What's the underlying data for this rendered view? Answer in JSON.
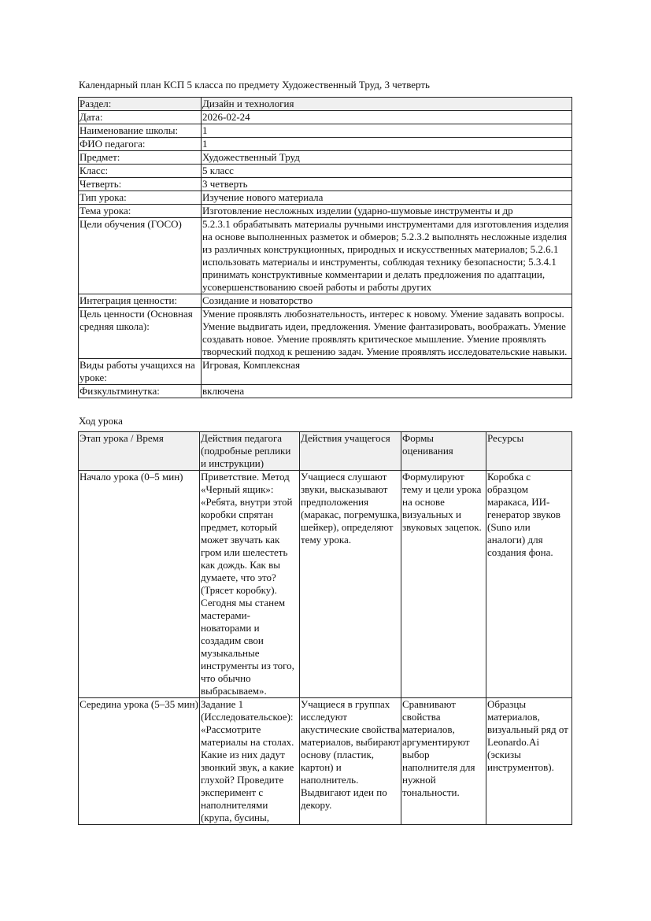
{
  "title": "Календарный план КСП 5 класса по предмету Художественный Труд, 3 четверть",
  "info": [
    {
      "label": "Раздел:",
      "value": "Дизайн и технология"
    },
    {
      "label": "Дата:",
      "value": "2026-02-24"
    },
    {
      "label": "Наименование школы:",
      "value": "1"
    },
    {
      "label": "ФИО педагога:",
      "value": "1"
    },
    {
      "label": "Предмет:",
      "value": "Художественный Труд"
    },
    {
      "label": "Класс:",
      "value": "5 класс"
    },
    {
      "label": "Четверть:",
      "value": "3 четверть"
    },
    {
      "label": "Тип урока:",
      "value": "Изучение нового материала"
    },
    {
      "label": "Тема урока:",
      "value": "Изготовление несложных изделии (ударно-шумовые инструменты и др"
    },
    {
      "label": "Цели обучения (ГОСО)",
      "value": "5.2.3.1 обрабатывать материалы ручными инструментами для изготовления изделия на основе выполненных разметок и обмеров; 5.2.3.2 выполнять несложные изделия из различных конструкционных, природных и искусственных материалов; 5.2.6.1 использовать материалы и инструменты, соблюдая технику безопасности; 5.3.4.1 принимать конструктивные комментарии и делать предложения по адаптации, усовершенствованию своей работы и работы других"
    },
    {
      "label": "Интеграция ценности:",
      "value": "Созидание и новаторство"
    },
    {
      "label": "Цель ценности (Основная средняя школа):",
      "value": "Умение проявлять любознательность, интерес к новому. Умение задавать вопросы. Умение выдвигать идеи, предложения. Умение фантазировать, воображать. Умение создавать новое. Умение проявлять критическое мышление. Умение проявлять творческий подход к решению задач. Умение проявлять исследовательские навыки."
    },
    {
      "label": "Виды работы учащихся на уроке:",
      "value": "Игровая, Комплексная"
    },
    {
      "label": "Физкультминутка:",
      "value": "включена"
    }
  ],
  "lesson_heading": "Ход урока",
  "lesson": {
    "headers": [
      "Этап урока / Время",
      "Действия педагога (подробные реплики и инструкции)",
      "Действия учащегося",
      "Формы оценивания",
      "Ресурсы"
    ],
    "rows": [
      [
        "Начало урока (0–5 мин)",
        "Приветствие. Метод «Черный ящик»: «Ребята, внутри этой коробки спрятан предмет, который может звучать как гром или шелестеть как дождь. Как вы думаете, что это? (Трясет коробку). Сегодня мы станем мастерами-новаторами и создадим свои музыкальные инструменты из того, что обычно выбрасываем».",
        "Учащиеся слушают звуки, высказывают предположения (маракас, погремушка, шейкер), определяют тему урока.",
        "Формулируют тему и цели урока на основе визуальных и звуковых зацепок.",
        "Коробка с образцом маракаса, ИИ-генератор звуков (Suno или аналоги) для создания фона."
      ],
      [
        "Середина урока (5–35 мин)",
        "Задание 1 (Исследовательское): «Рассмотрите материалы на столах. Какие из них дадут звонкий звук, а какие глухой? Проведите эксперимент с наполнителями (крупа, бусины,",
        "Учащиеся в группах исследуют акустические свойства материалов, выбирают основу (пластик, картон) и наполнитель. Выдвигают идеи по декору.",
        "Сравнивают свойства материалов, аргументируют выбор наполнителя для нужной тональности.",
        "Образцы материалов, визуальный ряд от Leonardo.Ai (эскизы инструментов)."
      ]
    ]
  }
}
